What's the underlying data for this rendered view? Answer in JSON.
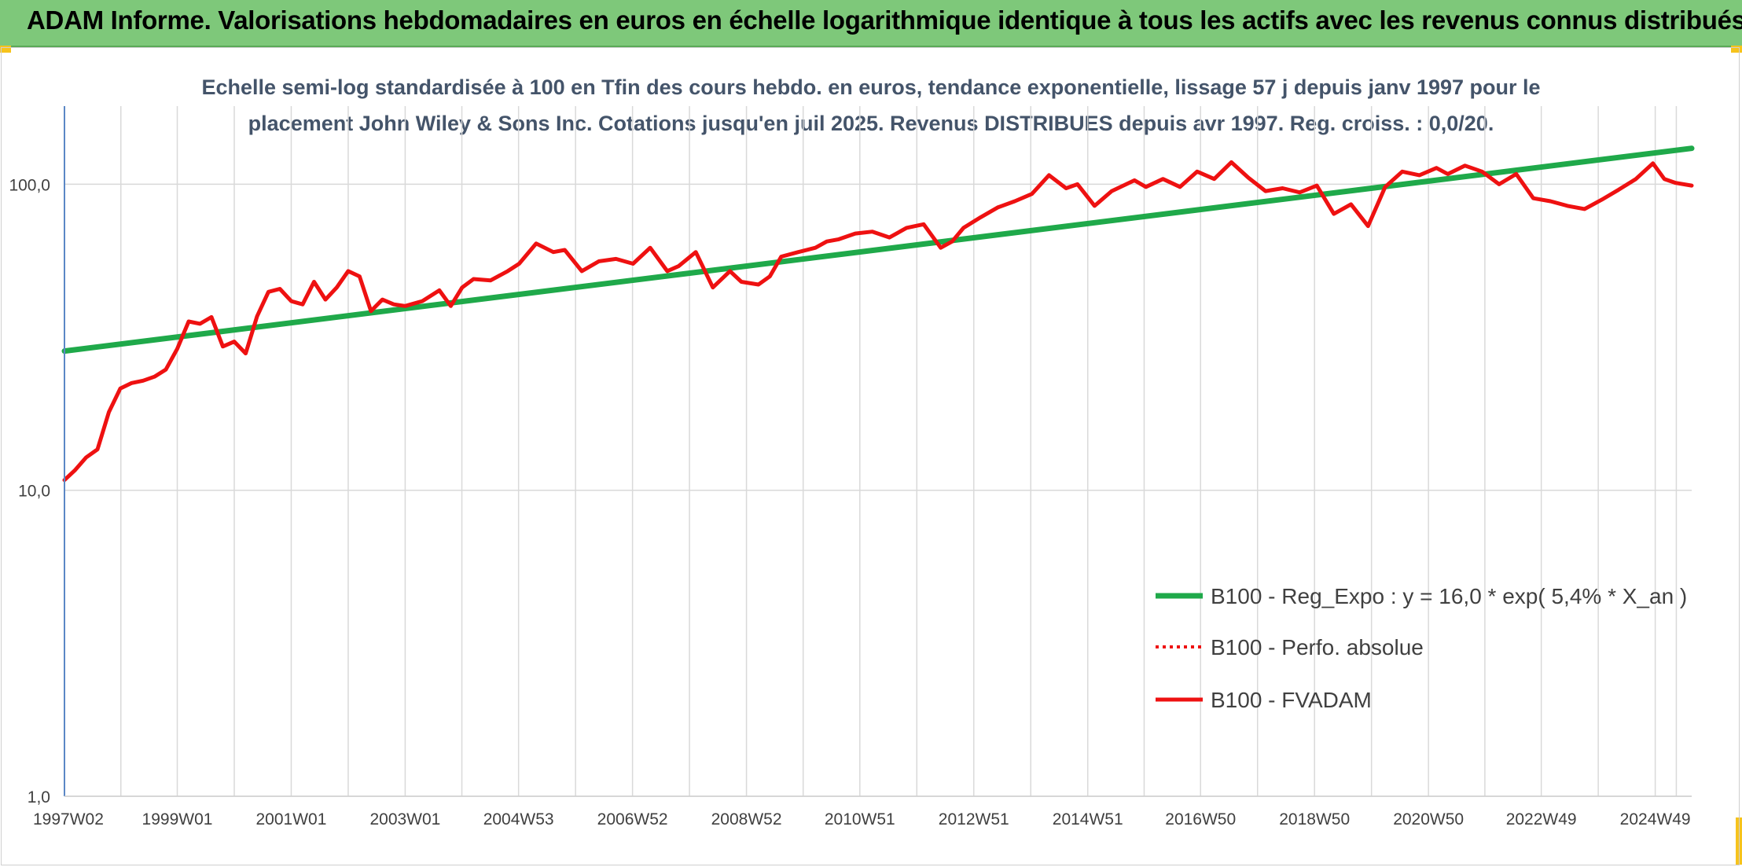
{
  "header": {
    "title": "ADAM Informe. Valorisations hebdomadaires en euros en échelle logarithmique identique à tous les actifs avec les revenus connus distribués"
  },
  "colors": {
    "banner": "#7ec87a",
    "accent_corner": "#f6c31c",
    "trend": "#1fa94a",
    "fvadam": "#ee1111",
    "perfo": "#ee1111",
    "subtitle": "#44546a",
    "grid": "#d9d9d9"
  },
  "chart_data": {
    "type": "line",
    "title_line1": "Echelle semi-log standardisée à 100 en Tfin des cours hebdo. en euros, tendance exponentielle, lissage 57 j depuis janv 1997 pour le",
    "title_line2": "placement John Wiley & Sons Inc. Cotations jusqu'en juil 2025. Revenus DISTRIBUES depuis avr 1997. Reg. croiss. : 0,0/20.",
    "y_scale": "log",
    "ylim": [
      1,
      180
    ],
    "xlim": [
      1997.02,
      2025.58
    ],
    "grid": true,
    "legend_position": "bottom-right",
    "y_ticks": [
      {
        "value": 1,
        "label": "1,0"
      },
      {
        "value": 10,
        "label": "10,0"
      },
      {
        "value": 100,
        "label": "100,0"
      }
    ],
    "x_ticks": [
      {
        "value": 1997.02,
        "label": "1997W02"
      },
      {
        "value": 1999.0,
        "label": "1999W01"
      },
      {
        "value": 2001.0,
        "label": "2001W01"
      },
      {
        "value": 2003.0,
        "label": "2003W01"
      },
      {
        "value": 2004.99,
        "label": "2004W53"
      },
      {
        "value": 2006.99,
        "label": "2006W52"
      },
      {
        "value": 2008.99,
        "label": "2008W52"
      },
      {
        "value": 2010.98,
        "label": "2010W51"
      },
      {
        "value": 2012.98,
        "label": "2012W51"
      },
      {
        "value": 2014.98,
        "label": "2014W51"
      },
      {
        "value": 2016.96,
        "label": "2016W50"
      },
      {
        "value": 2018.96,
        "label": "2018W50"
      },
      {
        "value": 2020.96,
        "label": "2020W50"
      },
      {
        "value": 2022.94,
        "label": "2022W49"
      },
      {
        "value": 2024.94,
        "label": "2024W49"
      }
    ],
    "series": [
      {
        "name": "B100 - Reg_Expo : y = 16,0 * exp( 5,4% *  X_an )",
        "style": "solid-thick",
        "color": "#1fa94a",
        "x": [
          1997.02,
          2025.58
        ],
        "y": [
          28.5,
          131
        ]
      },
      {
        "name": "B100 - Perfo. absolue",
        "style": "dotted",
        "color": "#ee1111",
        "x": [],
        "y": []
      },
      {
        "name": "B100 - FVADAM",
        "style": "solid",
        "color": "#ee1111",
        "x": [
          1997.02,
          1997.2,
          1997.4,
          1997.6,
          1997.8,
          1998.0,
          1998.2,
          1998.4,
          1998.6,
          1998.8,
          1999.0,
          1999.2,
          1999.4,
          1999.6,
          1999.8,
          2000.0,
          2000.2,
          2000.4,
          2000.6,
          2000.8,
          2001.0,
          2001.2,
          2001.4,
          2001.6,
          2001.8,
          2002.0,
          2002.2,
          2002.4,
          2002.6,
          2002.8,
          2003.0,
          2003.3,
          2003.6,
          2003.8,
          2004.0,
          2004.2,
          2004.5,
          2004.8,
          2005.0,
          2005.3,
          2005.6,
          2005.8,
          2006.1,
          2006.4,
          2006.7,
          2007.0,
          2007.3,
          2007.6,
          2007.8,
          2008.1,
          2008.4,
          2008.7,
          2008.9,
          2009.2,
          2009.4,
          2009.6,
          2009.9,
          2010.2,
          2010.4,
          2010.6,
          2010.9,
          2011.2,
          2011.5,
          2011.8,
          2012.1,
          2012.4,
          2012.6,
          2012.8,
          2013.1,
          2013.4,
          2013.7,
          2014.0,
          2014.3,
          2014.6,
          2014.8,
          2015.1,
          2015.4,
          2015.8,
          2016.0,
          2016.3,
          2016.6,
          2016.9,
          2017.2,
          2017.5,
          2017.8,
          2018.1,
          2018.4,
          2018.7,
          2019.0,
          2019.3,
          2019.6,
          2019.9,
          2020.2,
          2020.5,
          2020.8,
          2021.1,
          2021.3,
          2021.6,
          2021.9,
          2022.2,
          2022.5,
          2022.8,
          2023.1,
          2023.4,
          2023.7,
          2024.0,
          2024.3,
          2024.6,
          2024.9,
          2025.1,
          2025.3,
          2025.58
        ],
        "y": [
          10.8,
          11.6,
          12.8,
          13.6,
          18.0,
          21.5,
          22.4,
          22.8,
          23.5,
          24.8,
          29.0,
          35.6,
          35.0,
          36.8,
          29.5,
          30.6,
          28.0,
          37.0,
          44.5,
          45.5,
          41.5,
          40.5,
          48.0,
          42.0,
          46.0,
          52.0,
          50.0,
          38.5,
          42.0,
          40.5,
          40.0,
          41.5,
          45.0,
          40.0,
          46.0,
          49.0,
          48.5,
          52.0,
          55.0,
          64.0,
          60.0,
          61.0,
          52.0,
          56.0,
          57.0,
          55.0,
          62.0,
          52.0,
          54.0,
          60.0,
          46.0,
          52.0,
          48.0,
          47.0,
          50.0,
          58.0,
          60.0,
          62.0,
          65.0,
          66.0,
          69.0,
          70.0,
          67.0,
          72.0,
          74.0,
          62.0,
          65.0,
          72.0,
          78.0,
          84.0,
          88.0,
          93.0,
          107.0,
          97.0,
          100.0,
          85.0,
          95.0,
          103.0,
          98.0,
          104.0,
          98.0,
          110.0,
          104.0,
          118.0,
          105.0,
          95.0,
          97.0,
          94.0,
          99.0,
          80.0,
          86.0,
          73.0,
          98.0,
          110.0,
          107.0,
          113.0,
          108.0,
          115.0,
          110.0,
          100.0,
          108.0,
          90.0,
          88.0,
          85.0,
          83.0,
          89.0,
          96.0,
          104.0,
          117.0,
          104.0,
          101.0,
          99.0
        ]
      }
    ]
  }
}
